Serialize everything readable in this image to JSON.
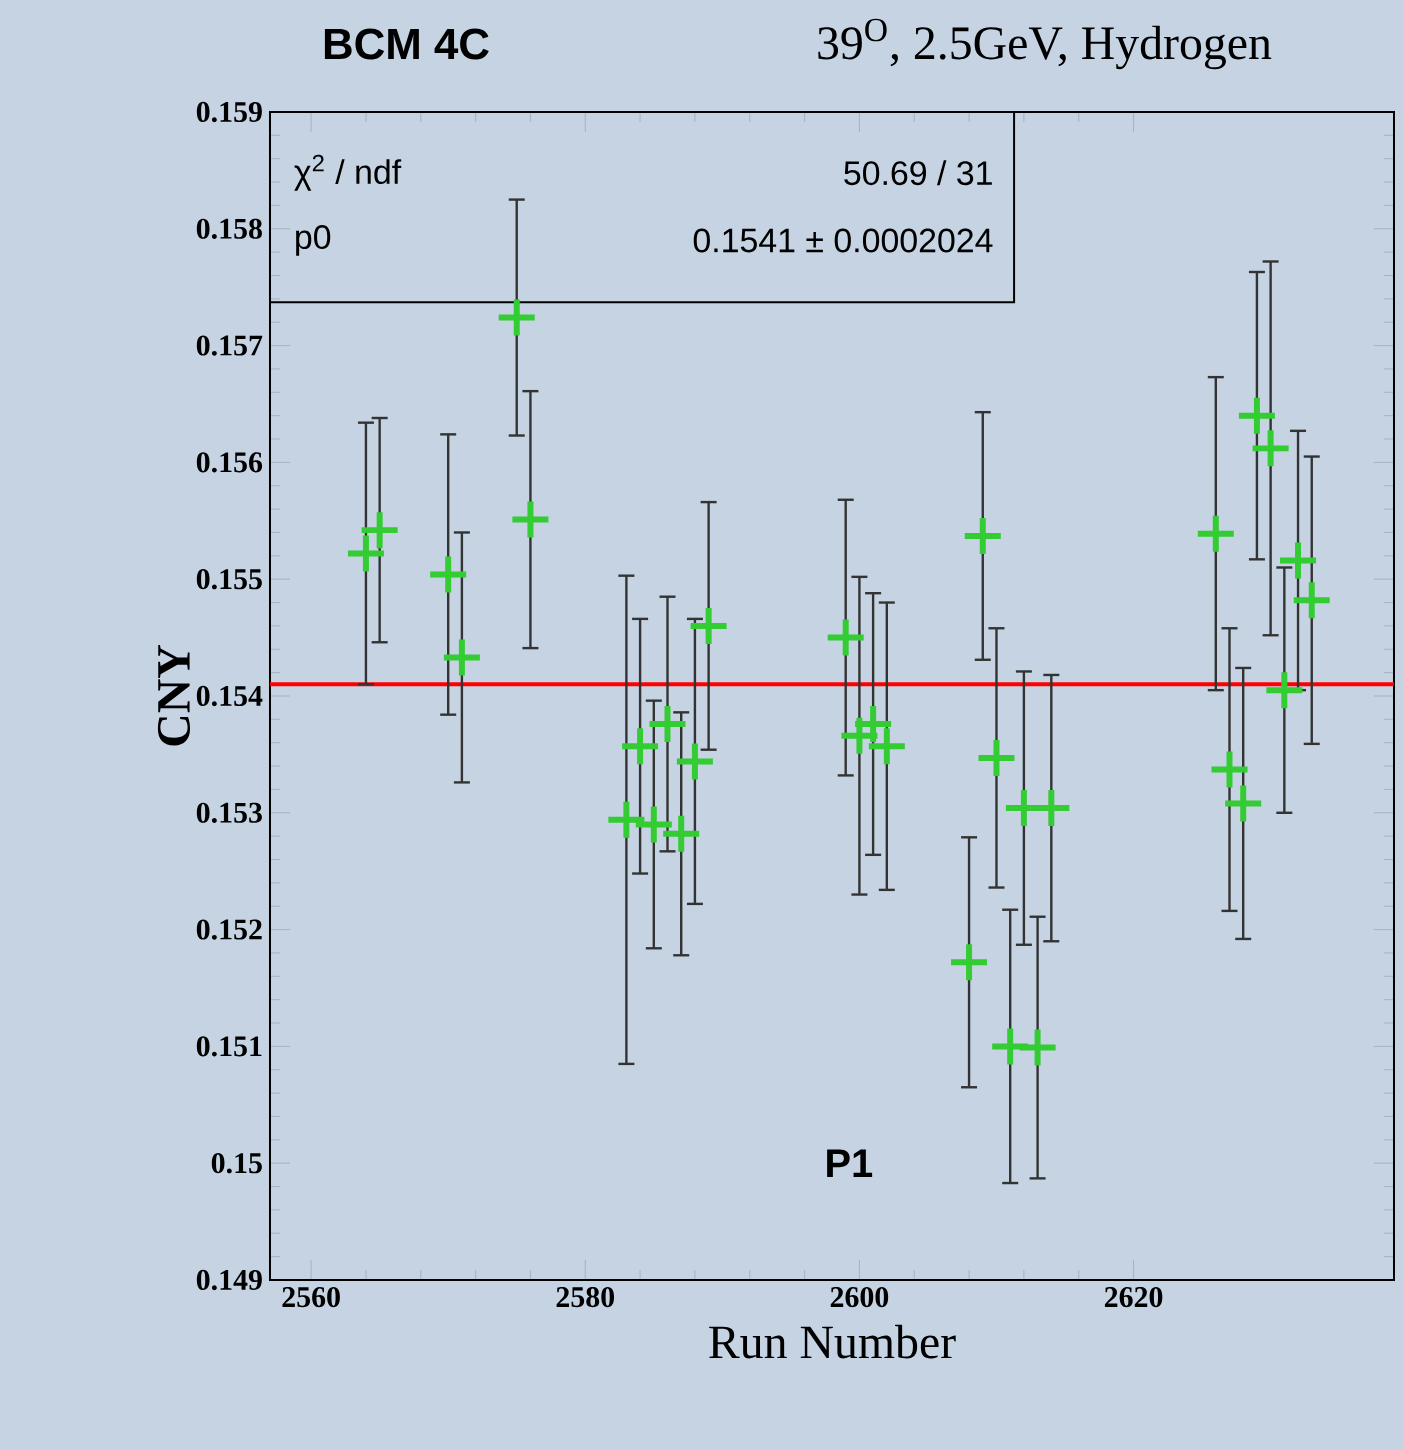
{
  "chart_data": {
    "type": "scatter",
    "title": "BCM 4C",
    "subtitle": "39$^{O}$, 2.5GeV, Hydrogen",
    "xlabel": "Run Number",
    "ylabel": "CNY",
    "x": [
      2564,
      2565,
      2570,
      2571,
      2575,
      2576,
      2583,
      2584,
      2585,
      2586,
      2587,
      2588,
      2589,
      2599,
      2600,
      2601,
      2602,
      2608,
      2609,
      2610,
      2611,
      2612,
      2613,
      2614,
      2626,
      2627,
      2628,
      2629,
      2630,
      2631,
      2632,
      2633
    ],
    "series": [
      {
        "color": "#33cc33",
        "values": [
          0.15522,
          0.15542,
          0.15504,
          0.15433,
          0.15724,
          0.15551,
          0.15294,
          0.15357,
          0.1529,
          0.15376,
          0.15282,
          0.15344,
          0.1546,
          0.1545,
          0.15366,
          0.15376,
          0.15357,
          0.15172,
          0.15537,
          0.15347,
          0.151,
          0.15304,
          0.15099,
          0.15304,
          0.15539,
          0.15337,
          0.15308,
          0.1564,
          0.15612,
          0.15405,
          0.15516,
          0.15482
        ],
        "errors": [
          0.00112,
          0.00096,
          0.0012,
          0.00107,
          0.00101,
          0.0011,
          0.00209,
          0.00109,
          0.00106,
          0.00109,
          0.00104,
          0.00122,
          0.00106,
          0.00118,
          0.00136,
          0.00112,
          0.00123,
          0.00107,
          0.00106,
          0.00111,
          0.00117,
          0.00117,
          0.00112,
          0.00114,
          0.00134,
          0.00121,
          0.00116,
          0.00123,
          0.0016,
          0.00105,
          0.00111,
          0.00123
        ]
      }
    ],
    "marker": "cross",
    "xlim": [
      2557,
      2639
    ],
    "xticks": [
      2560,
      2580,
      2600,
      2620
    ],
    "ylim": [
      0.149,
      0.159
    ],
    "yticks": [
      0.149,
      0.15,
      0.151,
      0.152,
      0.153,
      0.154,
      0.155,
      0.156,
      0.157,
      0.158,
      0.159
    ],
    "ref_lines": [
      {
        "axis": "y",
        "value": 0.1541,
        "color": "#ff0000"
      }
    ],
    "annotations": [
      "χ$^{2}$ / ndf",
      "50.69 / 31",
      "p0",
      "0.1541 ± 0.0002024",
      "P1"
    ],
    "grid": false
  }
}
